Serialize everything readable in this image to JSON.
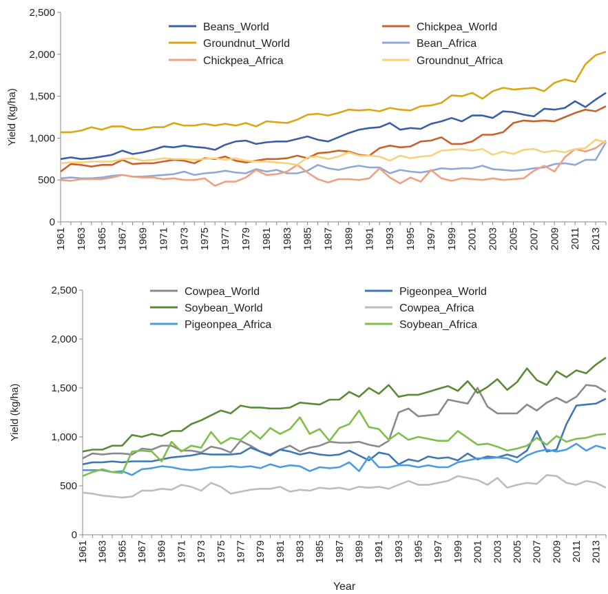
{
  "chart_data": [
    {
      "type": "line",
      "ylabel": "Yield (kg/ha)",
      "categories": [
        "1961",
        null,
        "1963",
        null,
        "1965",
        null,
        "1967",
        null,
        "1969",
        null,
        "1971",
        null,
        "1973",
        null,
        "1975",
        null,
        "1977",
        null,
        "1979",
        null,
        "1981",
        null,
        "1983",
        null,
        "1985",
        null,
        "1987",
        null,
        "1989",
        null,
        "1991",
        null,
        "1993",
        null,
        "1995",
        null,
        "1997",
        null,
        "1999",
        null,
        "2001",
        null,
        "2003",
        null,
        "2005",
        null,
        "2007",
        null,
        "2009",
        null,
        "2011",
        null,
        "2013",
        null
      ],
      "ylim": [
        0,
        2500
      ],
      "yticks": [
        0,
        500,
        {
          "value": 1000,
          "label": "1,000"
        },
        {
          "value": 1500,
          "label": "1,500"
        },
        {
          "value": 2000,
          "label": "2,000"
        },
        {
          "value": 2500,
          "label": "2,500"
        }
      ],
      "series": [
        {
          "name": "Beans_World",
          "color": "#3a5ea8",
          "values": [
            750,
            770,
            750,
            760,
            780,
            800,
            850,
            810,
            830,
            860,
            900,
            890,
            910,
            895,
            885,
            860,
            920,
            960,
            970,
            930,
            950,
            960,
            960,
            990,
            1020,
            980,
            960,
            1010,
            1060,
            1100,
            1120,
            1130,
            1180,
            1100,
            1120,
            1110,
            1170,
            1200,
            1240,
            1200,
            1270,
            1270,
            1240,
            1320,
            1310,
            1280,
            1260,
            1350,
            1340,
            1360,
            1440,
            1370,
            1460,
            1540
          ]
        },
        {
          "name": "Chickpea_World",
          "color": "#c8622a",
          "values": [
            600,
            690,
            680,
            660,
            680,
            680,
            740,
            690,
            700,
            700,
            720,
            740,
            730,
            700,
            760,
            750,
            780,
            730,
            710,
            730,
            750,
            750,
            760,
            790,
            760,
            820,
            830,
            850,
            840,
            800,
            790,
            880,
            910,
            890,
            900,
            960,
            970,
            1010,
            930,
            930,
            960,
            1040,
            1040,
            1070,
            1180,
            1210,
            1200,
            1210,
            1200,
            1250,
            1300,
            1340,
            1320,
            1380
          ]
        },
        {
          "name": "Groundnut_World",
          "color": "#dba514",
          "values": [
            1070,
            1070,
            1090,
            1130,
            1100,
            1140,
            1140,
            1100,
            1100,
            1130,
            1130,
            1180,
            1150,
            1150,
            1170,
            1150,
            1170,
            1150,
            1180,
            1140,
            1200,
            1190,
            1180,
            1220,
            1280,
            1290,
            1270,
            1300,
            1340,
            1330,
            1340,
            1320,
            1360,
            1340,
            1330,
            1380,
            1390,
            1420,
            1510,
            1500,
            1540,
            1470,
            1560,
            1600,
            1580,
            1590,
            1600,
            1560,
            1660,
            1700,
            1670,
            1880,
            1990,
            2030
          ]
        },
        {
          "name": "Bean_Africa",
          "color": "#8fa8d4",
          "values": [
            520,
            530,
            520,
            520,
            530,
            550,
            560,
            540,
            540,
            550,
            560,
            570,
            600,
            560,
            580,
            590,
            610,
            590,
            580,
            630,
            600,
            620,
            580,
            580,
            610,
            680,
            640,
            620,
            650,
            670,
            650,
            650,
            580,
            620,
            600,
            590,
            610,
            640,
            630,
            640,
            640,
            670,
            630,
            620,
            610,
            620,
            640,
            650,
            690,
            700,
            680,
            740,
            740,
            950
          ]
        },
        {
          "name": "Chickpea_Africa",
          "color": "#f0a080",
          "values": [
            500,
            490,
            510,
            510,
            510,
            530,
            560,
            540,
            530,
            530,
            510,
            520,
            500,
            500,
            520,
            430,
            480,
            480,
            530,
            620,
            560,
            570,
            600,
            680,
            590,
            510,
            470,
            510,
            510,
            500,
            520,
            640,
            530,
            460,
            530,
            480,
            620,
            520,
            490,
            520,
            510,
            500,
            520,
            500,
            510,
            520,
            610,
            670,
            600,
            770,
            870,
            840,
            880,
            970
          ]
        },
        {
          "name": "Groundnut_Africa",
          "color": "#f8d27a",
          "values": [
            700,
            710,
            710,
            720,
            720,
            720,
            750,
            760,
            730,
            740,
            760,
            750,
            750,
            740,
            750,
            760,
            740,
            760,
            730,
            720,
            720,
            710,
            700,
            680,
            770,
            780,
            750,
            780,
            830,
            790,
            790,
            780,
            730,
            790,
            760,
            780,
            790,
            850,
            860,
            870,
            850,
            870,
            800,
            840,
            810,
            860,
            870,
            830,
            850,
            830,
            870,
            880,
            980,
            950
          ]
        }
      ]
    },
    {
      "type": "line",
      "ylabel": "Yield (kg/ha)",
      "xlabel": "Year",
      "categories": [
        "1961",
        null,
        "1963",
        null,
        "1965",
        null,
        "1967",
        null,
        "1969",
        null,
        "1971",
        null,
        "1973",
        null,
        "1975",
        null,
        "1977",
        null,
        "1979",
        null,
        "1981",
        null,
        "1983",
        null,
        "1985",
        null,
        "1987",
        null,
        "1989",
        null,
        "1991",
        null,
        "1993",
        null,
        "1995",
        null,
        "1997",
        null,
        "1999",
        null,
        "2001",
        null,
        "2003",
        null,
        "2005",
        null,
        "2007",
        null,
        "2009",
        null,
        "2011",
        null,
        "2013",
        null
      ],
      "ylim": [
        0,
        2500
      ],
      "yticks": [
        0,
        500,
        {
          "value": 1000,
          "label": "1,000"
        },
        {
          "value": 1500,
          "label": "1,500"
        },
        {
          "value": 2000,
          "label": "2,000"
        },
        {
          "value": 2500,
          "label": "2,500"
        }
      ],
      "series": [
        {
          "name": "Cowpea_World",
          "color": "#8a8a8a",
          "values": [
            780,
            830,
            820,
            830,
            830,
            820,
            880,
            870,
            910,
            910,
            860,
            860,
            840,
            900,
            880,
            840,
            960,
            910,
            850,
            820,
            870,
            910,
            850,
            890,
            910,
            950,
            940,
            940,
            950,
            920,
            900,
            960,
            1250,
            1290,
            1210,
            1220,
            1230,
            1380,
            1360,
            1340,
            1500,
            1310,
            1240,
            1240,
            1240,
            1330,
            1270,
            1350,
            1400,
            1350,
            1410,
            1530,
            1520,
            1460
          ]
        },
        {
          "name": "Pigeonpea_World",
          "color": "#3f77b3",
          "values": [
            720,
            740,
            740,
            750,
            740,
            750,
            750,
            750,
            770,
            790,
            800,
            810,
            830,
            820,
            820,
            820,
            830,
            890,
            850,
            810,
            870,
            850,
            820,
            840,
            820,
            810,
            820,
            860,
            810,
            760,
            840,
            820,
            720,
            770,
            750,
            800,
            780,
            790,
            760,
            830,
            770,
            800,
            790,
            820,
            790,
            860,
            1060,
            850,
            870,
            1130,
            1320,
            1330,
            1340,
            1390
          ]
        },
        {
          "name": "Soybean_World",
          "color": "#5a8a35",
          "values": [
            850,
            870,
            870,
            910,
            910,
            1020,
            1000,
            1030,
            1010,
            1060,
            1060,
            1130,
            1170,
            1220,
            1270,
            1240,
            1320,
            1300,
            1300,
            1290,
            1290,
            1300,
            1350,
            1340,
            1330,
            1380,
            1380,
            1460,
            1410,
            1500,
            1440,
            1530,
            1410,
            1430,
            1430,
            1460,
            1490,
            1520,
            1470,
            1570,
            1450,
            1510,
            1590,
            1480,
            1560,
            1700,
            1580,
            1530,
            1670,
            1610,
            1680,
            1650,
            1740,
            1810
          ]
        },
        {
          "name": "Cowpea_Africa",
          "color": "#bdbdbd",
          "values": [
            430,
            420,
            400,
            390,
            380,
            390,
            450,
            450,
            470,
            460,
            510,
            490,
            450,
            530,
            490,
            420,
            440,
            460,
            470,
            470,
            490,
            440,
            460,
            450,
            480,
            470,
            480,
            460,
            490,
            480,
            490,
            470,
            510,
            550,
            510,
            510,
            530,
            550,
            600,
            580,
            560,
            510,
            580,
            480,
            510,
            530,
            520,
            610,
            600,
            530,
            510,
            550,
            530,
            480
          ]
        },
        {
          "name": "Pigeonpea_Africa",
          "color": "#4a9ce0",
          "values": [
            660,
            660,
            660,
            640,
            650,
            610,
            670,
            680,
            700,
            690,
            670,
            660,
            670,
            690,
            690,
            700,
            690,
            700,
            680,
            720,
            690,
            710,
            700,
            650,
            690,
            680,
            690,
            740,
            650,
            800,
            690,
            690,
            710,
            710,
            690,
            710,
            690,
            690,
            740,
            760,
            780,
            780,
            790,
            780,
            740,
            810,
            850,
            870,
            850,
            870,
            930,
            860,
            910,
            880
          ]
        },
        {
          "name": "Soybean_Africa",
          "color": "#7dbf4a",
          "values": [
            600,
            640,
            670,
            640,
            630,
            850,
            860,
            850,
            750,
            950,
            850,
            910,
            890,
            1050,
            930,
            990,
            970,
            1060,
            980,
            1090,
            1030,
            1080,
            1200,
            1030,
            1080,
            960,
            1090,
            1130,
            1270,
            1100,
            1080,
            970,
            1040,
            970,
            1000,
            980,
            960,
            960,
            1060,
            990,
            920,
            930,
            900,
            860,
            880,
            910,
            990,
            920,
            1010,
            950,
            980,
            990,
            1020,
            1030
          ]
        }
      ]
    }
  ]
}
